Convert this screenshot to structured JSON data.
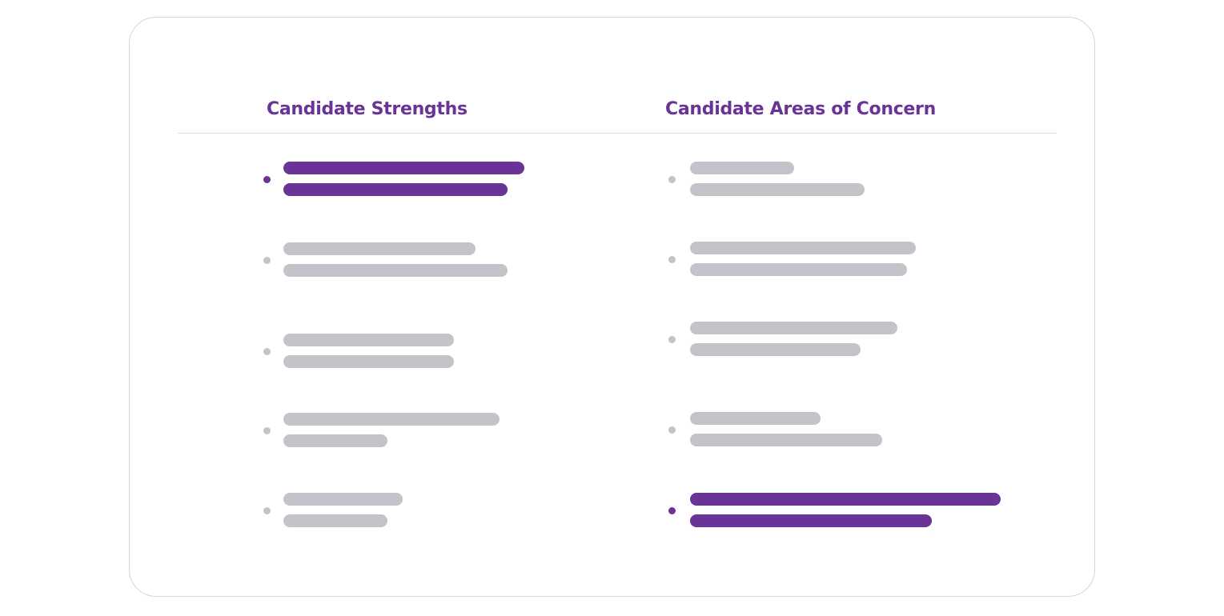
{
  "colors": {
    "accent": "#6a3397",
    "muted": "#c3c3c9",
    "border": "#d4d4d8",
    "divider": "#dcdce0"
  },
  "strengths": {
    "title": "Candidate Strengths",
    "items": [
      {
        "highlighted": true
      },
      {
        "highlighted": false
      },
      {
        "highlighted": false
      },
      {
        "highlighted": false
      },
      {
        "highlighted": false
      }
    ]
  },
  "concerns": {
    "title": "Candidate Areas of Concern",
    "items": [
      {
        "highlighted": false
      },
      {
        "highlighted": false
      },
      {
        "highlighted": false
      },
      {
        "highlighted": false
      },
      {
        "highlighted": true
      }
    ]
  }
}
